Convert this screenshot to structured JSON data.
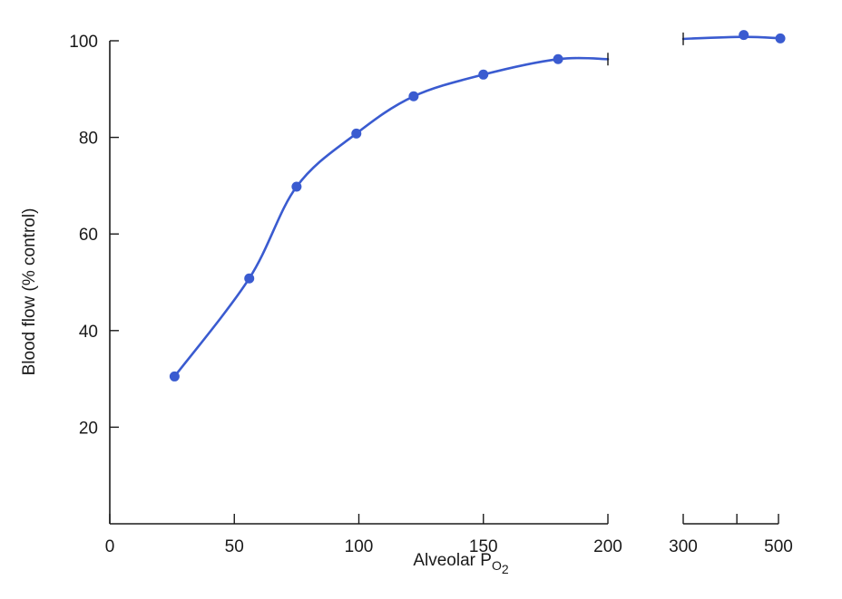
{
  "chart_data": {
    "type": "line",
    "ylabel": "Blood flow (% control)",
    "xlabel": {
      "main": "Alveolar P",
      "sub": "O",
      "subsub": "2"
    },
    "ylim": [
      0,
      100
    ],
    "yticks": [
      20,
      40,
      60,
      80,
      100
    ],
    "xaxis_segments": [
      {
        "scale": "linear",
        "range": [
          0,
          200
        ],
        "ticks": [
          0,
          50,
          100,
          150,
          200
        ],
        "tick_labels": [
          "0",
          "50",
          "100",
          "150",
          "200"
        ]
      },
      {
        "scale": "log",
        "range": [
          300,
          500
        ],
        "ticks": [
          300,
          400,
          500
        ],
        "tick_labels": [
          "300",
          "",
          "500"
        ]
      }
    ],
    "grid": false,
    "color": "#3a5bd0",
    "series": [
      {
        "segment_points": [
          {
            "segment": 0,
            "x": [
              26,
              56,
              75,
              99,
              122,
              150,
              180
            ],
            "y": [
              30.5,
              50.8,
              69.8,
              80.8,
              88.5,
              93,
              96.2
            ]
          },
          {
            "segment": 1,
            "x": [
              415,
              505
            ],
            "y": [
              101.2,
              100.5
            ]
          }
        ],
        "line_segments": [
          {
            "segment": 0,
            "x": [
              26,
              56,
              75,
              99,
              122,
              150,
              180,
              200
            ],
            "y": [
              30.5,
              50.8,
              69.8,
              80.8,
              88.5,
              93,
              96.2,
              96.2
            ]
          },
          {
            "segment": 1,
            "x": [
              300,
              415,
              505
            ],
            "y": [
              100.4,
              100.8,
              100.5
            ]
          }
        ]
      }
    ]
  }
}
